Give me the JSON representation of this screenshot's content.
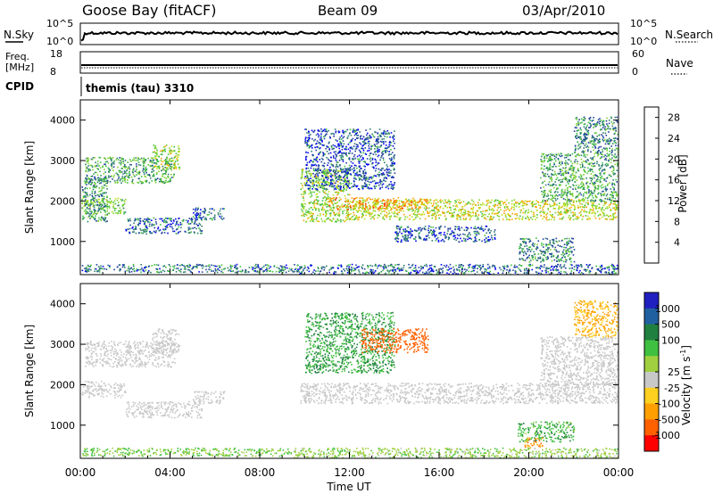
{
  "header": {
    "station": "Goose Bay (fitACF)",
    "beam": "Beam 09",
    "date": "03/Apr/2010"
  },
  "noise_panel": {
    "left_label": "N.Sky",
    "right_label": "N.Search",
    "left_ticks": [
      "10^5",
      "10^0"
    ],
    "right_ticks": [
      "10^5",
      "10^0"
    ]
  },
  "freq_panel": {
    "left_label_line1": "Freq.",
    "left_label_line2": "[MHz]",
    "right_label": "Nave",
    "left_ticks": [
      "18",
      "8"
    ],
    "right_ticks": [
      "60",
      "0"
    ]
  },
  "cpid": {
    "label": "CPID",
    "mode": "themis (tau) 3310"
  },
  "colors": {
    "power_bar": [
      "#0000ff",
      "#1f3f9f",
      "#2f7f6f",
      "#3fbf3f",
      "#7fd02f",
      "#bfdf1f",
      "#ffa000",
      "#ff7000",
      "#ff3000",
      "#ff0000"
    ],
    "velocity_bar": [
      "#2020c0",
      "#2060a0",
      "#208040",
      "#40c040",
      "#a0d040",
      "#c8c8c8",
      "#ffd020",
      "#ffa000",
      "#ff6000",
      "#ff0000"
    ],
    "ground_scatter": "#c8c8c8"
  },
  "chart_data": [
    {
      "type": "heatmap",
      "name_label": "Power",
      "ylabel": "Slant Range [km]",
      "ylim": [
        180,
        4500
      ],
      "yticks": [
        "1000",
        "2000",
        "3000",
        "4000"
      ],
      "xlim_hours": [
        0,
        24
      ],
      "xticks": [
        "00:00",
        "04:00",
        "08:00",
        "12:00",
        "16:00",
        "20:00",
        "00:00"
      ],
      "colorbar_label": "Power [dB]",
      "colorbar_ticks": [
        "4",
        "8",
        "12",
        "16",
        "20",
        "24",
        "28"
      ],
      "colorbar_range": [
        0,
        30
      ],
      "echo_regions": [
        {
          "t0": 0.2,
          "t1": 4.2,
          "r0": 2450,
          "r1": 3100,
          "power": 10
        },
        {
          "t0": 0.0,
          "t1": 2.0,
          "r0": 1700,
          "r1": 2100,
          "power": 13
        },
        {
          "t0": 3.2,
          "t1": 4.4,
          "r0": 2800,
          "r1": 3400,
          "power": 14
        },
        {
          "t0": 0.0,
          "t1": 1.2,
          "r0": 1500,
          "r1": 2600,
          "power": 8
        },
        {
          "t0": 2.0,
          "t1": 5.4,
          "r0": 1200,
          "r1": 1600,
          "power": 6
        },
        {
          "t0": 5.0,
          "t1": 6.4,
          "r0": 1550,
          "r1": 1850,
          "power": 6
        },
        {
          "t0": 0.0,
          "t1": 9.5,
          "r0": 250,
          "r1": 450,
          "power": 7
        },
        {
          "t0": 9.8,
          "t1": 12.0,
          "r0": 1500,
          "r1": 2800,
          "power": 14
        },
        {
          "t0": 12.0,
          "t1": 24.0,
          "r0": 1550,
          "r1": 2050,
          "power": 16
        },
        {
          "t0": 11.0,
          "t1": 15.5,
          "r0": 1800,
          "r1": 2100,
          "power": 20
        },
        {
          "t0": 10.0,
          "t1": 14.0,
          "r0": 2300,
          "r1": 3800,
          "power": 5
        },
        {
          "t0": 14.0,
          "t1": 18.5,
          "r0": 1000,
          "r1": 1400,
          "power": 5
        },
        {
          "t0": 19.5,
          "t1": 22.0,
          "r0": 500,
          "r1": 1100,
          "power": 8
        },
        {
          "t0": 20.5,
          "t1": 24.0,
          "r0": 2000,
          "r1": 3200,
          "power": 10
        },
        {
          "t0": 22.0,
          "t1": 24.0,
          "r0": 3200,
          "r1": 4100,
          "power": 8
        },
        {
          "t0": 9.5,
          "t1": 24.0,
          "r0": 200,
          "r1": 450,
          "power": 6
        }
      ]
    },
    {
      "type": "heatmap",
      "name_label": "Velocity",
      "ylabel": "Slant Range [km]",
      "ylim": [
        180,
        4500
      ],
      "yticks": [
        "1000",
        "2000",
        "3000",
        "4000"
      ],
      "xlim_hours": [
        0,
        24
      ],
      "xticks": [
        "00:00",
        "04:00",
        "08:00",
        "12:00",
        "16:00",
        "20:00",
        "00:00"
      ],
      "xlabel": "Time UT",
      "colorbar_label_main": "Velocity",
      "colorbar_label_unit": "[m s",
      "colorbar_label_sup": "-1",
      "colorbar_label_close": "]",
      "colorbar_ticks": [
        "1000",
        "500",
        "100",
        "25",
        "-25",
        "-100",
        "-500",
        "-1000"
      ],
      "echo_regions": [
        {
          "t0": 0.2,
          "t1": 4.2,
          "r0": 2450,
          "r1": 3100,
          "gs": true
        },
        {
          "t0": 0.0,
          "t1": 2.0,
          "r0": 1700,
          "r1": 2100,
          "gs": true
        },
        {
          "t0": 3.2,
          "t1": 4.4,
          "r0": 2800,
          "r1": 3400,
          "gs": true
        },
        {
          "t0": 2.0,
          "t1": 5.4,
          "r0": 1200,
          "r1": 1600,
          "gs": true
        },
        {
          "t0": 5.0,
          "t1": 6.4,
          "r0": 1550,
          "r1": 1850,
          "gs": true
        },
        {
          "t0": 0.0,
          "t1": 9.5,
          "r0": 250,
          "r1": 450,
          "v": 50
        },
        {
          "t0": 9.8,
          "t1": 24.0,
          "r0": 1550,
          "r1": 2050,
          "gs": true
        },
        {
          "t0": 10.0,
          "t1": 14.0,
          "r0": 2300,
          "r1": 3800,
          "v": 100
        },
        {
          "t0": 12.5,
          "t1": 15.5,
          "r0": 2800,
          "r1": 3400,
          "v": -300
        },
        {
          "t0": 19.5,
          "t1": 22.0,
          "r0": 600,
          "r1": 1100,
          "v": 80
        },
        {
          "t0": 19.8,
          "t1": 20.6,
          "r0": 450,
          "r1": 700,
          "v": -80
        },
        {
          "t0": 20.5,
          "t1": 24.0,
          "r0": 2000,
          "r1": 3200,
          "gs": true
        },
        {
          "t0": 22.0,
          "t1": 24.0,
          "r0": 3200,
          "r1": 4100,
          "v": -60
        },
        {
          "t0": 9.5,
          "t1": 24.0,
          "r0": 200,
          "r1": 450,
          "v": 40
        }
      ]
    }
  ]
}
